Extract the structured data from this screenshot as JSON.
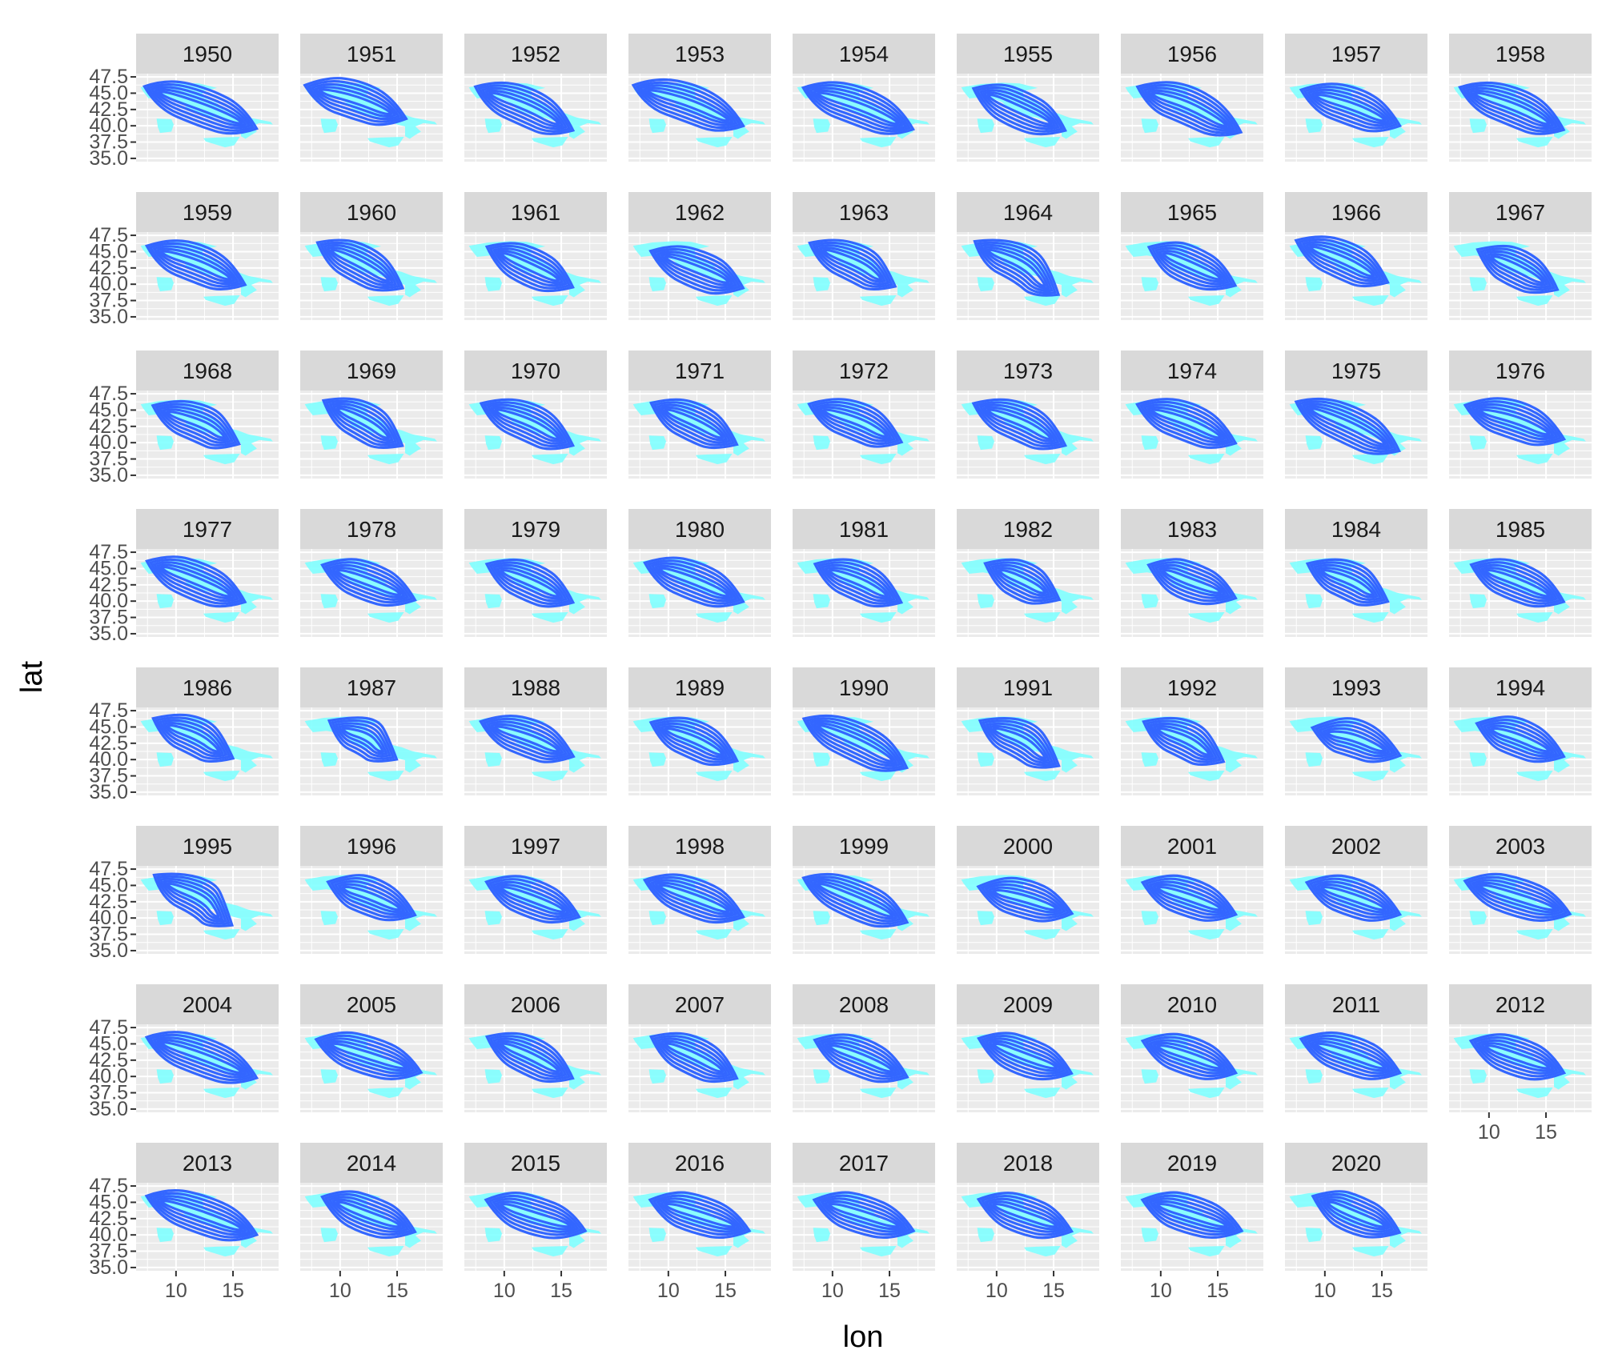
{
  "chart_data": {
    "type": "facet-density-contour",
    "xlabel": "lon",
    "ylabel": "lat",
    "x_ticks": [
      10,
      15
    ],
    "y_ticks": [
      "35.0",
      "37.5",
      "40.0",
      "42.5",
      "45.0",
      "47.5"
    ],
    "xlim": [
      6.5,
      19.0
    ],
    "ylim": [
      34.5,
      48.0
    ],
    "grid": true,
    "colors": {
      "contour": "#3366FF",
      "map_fill": "#80FFFF",
      "panel_background": "#EBEBEB",
      "strip_background": "#D9D9D9",
      "grid": "#FFFFFF"
    },
    "facets": [
      {
        "year": "1950",
        "density_centers": [
          [
            8.8,
            45.0
          ],
          [
            12.5,
            42.8
          ],
          [
            15.5,
            40.6
          ]
        ]
      },
      {
        "year": "1951",
        "density_centers": [
          [
            8.5,
            45.3
          ],
          [
            11.5,
            44.0
          ],
          [
            14.2,
            42.0
          ]
        ]
      },
      {
        "year": "1952",
        "density_centers": [
          [
            9.0,
            44.8
          ],
          [
            12.2,
            42.8
          ],
          [
            14.5,
            40.5
          ]
        ]
      },
      {
        "year": "1953",
        "density_centers": [
          [
            8.5,
            45.2
          ],
          [
            12.0,
            43.5
          ],
          [
            15.0,
            41.0
          ]
        ]
      },
      {
        "year": "1954",
        "density_centers": [
          [
            9.0,
            44.8
          ],
          [
            12.5,
            43.0
          ],
          [
            15.5,
            40.5
          ]
        ]
      },
      {
        "year": "1955",
        "density_centers": [
          [
            9.5,
            44.5
          ],
          [
            12.0,
            42.5
          ],
          [
            14.5,
            40.5
          ]
        ]
      },
      {
        "year": "1956",
        "density_centers": [
          [
            9.5,
            44.8
          ],
          [
            12.5,
            43.2
          ],
          [
            15.5,
            40.2
          ]
        ]
      },
      {
        "year": "1957",
        "density_centers": [
          [
            9.5,
            44.5
          ],
          [
            12.5,
            43.0
          ],
          [
            15.0,
            41.0
          ]
        ]
      },
      {
        "year": "1958",
        "density_centers": [
          [
            9.0,
            44.8
          ],
          [
            12.5,
            42.8
          ],
          [
            15.0,
            40.5
          ]
        ]
      },
      {
        "year": "1959",
        "density_centers": [
          [
            9.0,
            44.8
          ],
          [
            12.0,
            43.2
          ],
          [
            14.5,
            41.0
          ]
        ]
      },
      {
        "year": "1960",
        "density_centers": [
          [
            9.5,
            45.0
          ],
          [
            12.0,
            43.0
          ],
          [
            14.0,
            40.8
          ]
        ]
      },
      {
        "year": "1961",
        "density_centers": [
          [
            10.0,
            44.5
          ],
          [
            12.5,
            42.5
          ],
          [
            14.5,
            40.8
          ]
        ]
      },
      {
        "year": "1962",
        "density_centers": [
          [
            10.0,
            44.0
          ],
          [
            13.0,
            42.0
          ],
          [
            15.0,
            40.5
          ]
        ]
      },
      {
        "year": "1963",
        "density_centers": [
          [
            9.5,
            45.0
          ],
          [
            12.5,
            43.0
          ],
          [
            14.0,
            41.0
          ]
        ]
      },
      {
        "year": "1964",
        "density_centers": [
          [
            9.5,
            45.0
          ],
          [
            12.5,
            43.0
          ],
          [
            14.0,
            40.0
          ]
        ]
      },
      {
        "year": "1965",
        "density_centers": [
          [
            10.5,
            44.5
          ],
          [
            12.5,
            43.0
          ],
          [
            15.0,
            41.0
          ]
        ]
      },
      {
        "year": "1966",
        "density_centers": [
          [
            9.0,
            45.5
          ],
          [
            12.0,
            43.5
          ],
          [
            14.0,
            41.5
          ]
        ]
      },
      {
        "year": "1967",
        "density_centers": [
          [
            10.5,
            44.0
          ],
          [
            12.5,
            42.5
          ],
          [
            14.5,
            40.5
          ]
        ]
      },
      {
        "year": "1968",
        "density_centers": [
          [
            9.5,
            44.5
          ],
          [
            12.5,
            42.8
          ],
          [
            14.0,
            41.0
          ]
        ]
      },
      {
        "year": "1969",
        "density_centers": [
          [
            10.0,
            45.0
          ],
          [
            12.5,
            43.0
          ],
          [
            14.0,
            41.0
          ]
        ]
      },
      {
        "year": "1970",
        "density_centers": [
          [
            9.5,
            44.8
          ],
          [
            12.5,
            43.0
          ],
          [
            14.5,
            40.8
          ]
        ]
      },
      {
        "year": "1971",
        "density_centers": [
          [
            10.0,
            44.8
          ],
          [
            12.5,
            43.0
          ],
          [
            14.5,
            41.0
          ]
        ]
      },
      {
        "year": "1972",
        "density_centers": [
          [
            9.5,
            44.8
          ],
          [
            12.5,
            43.2
          ],
          [
            14.5,
            41.2
          ]
        ]
      },
      {
        "year": "1973",
        "density_centers": [
          [
            9.5,
            44.8
          ],
          [
            12.5,
            43.0
          ],
          [
            14.5,
            40.8
          ]
        ]
      },
      {
        "year": "1974",
        "density_centers": [
          [
            9.5,
            44.8
          ],
          [
            12.5,
            43.2
          ],
          [
            15.0,
            41.0
          ]
        ]
      },
      {
        "year": "1975",
        "density_centers": [
          [
            9.0,
            45.0
          ],
          [
            12.5,
            42.5
          ],
          [
            15.0,
            40.0
          ]
        ]
      },
      {
        "year": "1976",
        "density_centers": [
          [
            9.5,
            44.8
          ],
          [
            12.5,
            43.5
          ],
          [
            15.0,
            41.5
          ]
        ]
      },
      {
        "year": "1977",
        "density_centers": [
          [
            9.0,
            45.0
          ],
          [
            12.0,
            43.0
          ],
          [
            14.5,
            41.0
          ]
        ]
      },
      {
        "year": "1978",
        "density_centers": [
          [
            10.0,
            44.5
          ],
          [
            12.5,
            43.0
          ],
          [
            15.0,
            41.2
          ]
        ]
      },
      {
        "year": "1979",
        "density_centers": [
          [
            10.0,
            44.5
          ],
          [
            12.5,
            42.8
          ],
          [
            14.5,
            41.0
          ]
        ]
      },
      {
        "year": "1980",
        "density_centers": [
          [
            9.5,
            44.8
          ],
          [
            12.5,
            43.0
          ],
          [
            15.0,
            41.0
          ]
        ]
      },
      {
        "year": "1981",
        "density_centers": [
          [
            10.0,
            44.5
          ],
          [
            12.5,
            43.0
          ],
          [
            14.5,
            41.0
          ]
        ]
      },
      {
        "year": "1982",
        "density_centers": [
          [
            10.5,
            44.5
          ],
          [
            12.5,
            43.0
          ],
          [
            14.0,
            41.5
          ]
        ]
      },
      {
        "year": "1983",
        "density_centers": [
          [
            10.5,
            44.5
          ],
          [
            12.5,
            43.0
          ],
          [
            15.0,
            41.5
          ]
        ]
      },
      {
        "year": "1984",
        "density_centers": [
          [
            10.0,
            44.5
          ],
          [
            12.5,
            43.0
          ],
          [
            14.0,
            41.2
          ]
        ]
      },
      {
        "year": "1985",
        "density_centers": [
          [
            10.0,
            44.5
          ],
          [
            12.5,
            43.0
          ],
          [
            15.0,
            41.0
          ]
        ]
      },
      {
        "year": "1986",
        "density_centers": [
          [
            9.5,
            45.0
          ],
          [
            12.0,
            43.5
          ],
          [
            13.5,
            41.5
          ]
        ]
      },
      {
        "year": "1987",
        "density_centers": [
          [
            10.5,
            44.5
          ],
          [
            12.5,
            43.5
          ],
          [
            13.5,
            41.5
          ]
        ]
      },
      {
        "year": "1988",
        "density_centers": [
          [
            9.5,
            44.8
          ],
          [
            12.5,
            43.2
          ],
          [
            14.5,
            41.5
          ]
        ]
      },
      {
        "year": "1989",
        "density_centers": [
          [
            10.0,
            44.5
          ],
          [
            12.5,
            43.0
          ],
          [
            14.5,
            41.0
          ]
        ]
      },
      {
        "year": "1990",
        "density_centers": [
          [
            9.0,
            45.0
          ],
          [
            12.5,
            42.5
          ],
          [
            15.0,
            40.0
          ]
        ]
      },
      {
        "year": "1991",
        "density_centers": [
          [
            10.0,
            44.5
          ],
          [
            12.5,
            43.0
          ],
          [
            14.0,
            40.5
          ]
        ]
      },
      {
        "year": "1992",
        "density_centers": [
          [
            10.0,
            44.5
          ],
          [
            12.5,
            43.0
          ],
          [
            14.0,
            41.0
          ]
        ]
      },
      {
        "year": "1993",
        "density_centers": [
          [
            10.5,
            44.0
          ],
          [
            12.5,
            43.5
          ],
          [
            15.0,
            41.5
          ]
        ]
      },
      {
        "year": "1994",
        "density_centers": [
          [
            10.5,
            44.5
          ],
          [
            12.5,
            43.5
          ],
          [
            15.0,
            41.5
          ]
        ]
      },
      {
        "year": "1995",
        "density_centers": [
          [
            9.5,
            45.0
          ],
          [
            12.5,
            43.0
          ],
          [
            13.5,
            40.5
          ]
        ]
      },
      {
        "year": "1996",
        "density_centers": [
          [
            10.5,
            44.5
          ],
          [
            12.5,
            43.5
          ],
          [
            15.0,
            41.5
          ]
        ]
      },
      {
        "year": "1997",
        "density_centers": [
          [
            10.0,
            44.5
          ],
          [
            12.5,
            43.0
          ],
          [
            15.0,
            41.2
          ]
        ]
      },
      {
        "year": "1998",
        "density_centers": [
          [
            9.5,
            44.8
          ],
          [
            12.5,
            43.0
          ],
          [
            15.0,
            41.2
          ]
        ]
      },
      {
        "year": "1999",
        "density_centers": [
          [
            9.0,
            45.0
          ],
          [
            12.5,
            42.5
          ],
          [
            15.0,
            40.5
          ]
        ]
      },
      {
        "year": "2000",
        "density_centers": [
          [
            10.0,
            44.0
          ],
          [
            12.5,
            43.0
          ],
          [
            15.0,
            41.5
          ]
        ]
      },
      {
        "year": "2001",
        "density_centers": [
          [
            10.0,
            44.5
          ],
          [
            12.5,
            43.2
          ],
          [
            15.0,
            41.5
          ]
        ]
      },
      {
        "year": "2002",
        "density_centers": [
          [
            10.0,
            44.5
          ],
          [
            12.5,
            43.2
          ],
          [
            15.0,
            41.5
          ]
        ]
      },
      {
        "year": "2003",
        "density_centers": [
          [
            9.5,
            44.8
          ],
          [
            12.5,
            43.2
          ],
          [
            15.5,
            41.5
          ]
        ]
      },
      {
        "year": "2004",
        "density_centers": [
          [
            9.0,
            45.0
          ],
          [
            12.5,
            43.0
          ],
          [
            15.5,
            40.8
          ]
        ]
      },
      {
        "year": "2005",
        "density_centers": [
          [
            9.5,
            44.8
          ],
          [
            12.5,
            43.2
          ],
          [
            15.5,
            41.5
          ]
        ]
      },
      {
        "year": "2006",
        "density_centers": [
          [
            10.0,
            44.8
          ],
          [
            12.5,
            43.0
          ],
          [
            14.5,
            41.0
          ]
        ]
      },
      {
        "year": "2007",
        "density_centers": [
          [
            10.0,
            44.8
          ],
          [
            12.5,
            43.0
          ],
          [
            14.5,
            41.0
          ]
        ]
      },
      {
        "year": "2008",
        "density_centers": [
          [
            10.0,
            44.5
          ],
          [
            12.5,
            43.0
          ],
          [
            15.0,
            41.0
          ]
        ]
      },
      {
        "year": "2009",
        "density_centers": [
          [
            10.0,
            44.8
          ],
          [
            12.5,
            43.0
          ],
          [
            15.0,
            41.5
          ]
        ]
      },
      {
        "year": "2010",
        "density_centers": [
          [
            10.0,
            44.5
          ],
          [
            12.5,
            43.2
          ],
          [
            15.0,
            41.5
          ]
        ]
      },
      {
        "year": "2011",
        "density_centers": [
          [
            9.5,
            44.8
          ],
          [
            12.5,
            43.2
          ],
          [
            15.0,
            41.5
          ]
        ]
      },
      {
        "year": "2012",
        "density_centers": [
          [
            10.0,
            44.5
          ],
          [
            12.5,
            43.0
          ],
          [
            15.0,
            41.5
          ]
        ]
      },
      {
        "year": "2013",
        "density_centers": [
          [
            9.0,
            45.0
          ],
          [
            12.5,
            43.0
          ],
          [
            15.5,
            41.0
          ]
        ]
      },
      {
        "year": "2014",
        "density_centers": [
          [
            10.0,
            44.8
          ],
          [
            12.5,
            43.0
          ],
          [
            15.0,
            41.5
          ]
        ]
      },
      {
        "year": "2015",
        "density_centers": [
          [
            10.0,
            44.5
          ],
          [
            12.5,
            43.0
          ],
          [
            15.5,
            41.5
          ]
        ]
      },
      {
        "year": "2016",
        "density_centers": [
          [
            10.0,
            44.5
          ],
          [
            12.5,
            43.2
          ],
          [
            15.5,
            41.5
          ]
        ]
      },
      {
        "year": "2017",
        "density_centers": [
          [
            10.0,
            44.5
          ],
          [
            12.5,
            43.2
          ],
          [
            15.5,
            41.5
          ]
        ]
      },
      {
        "year": "2018",
        "density_centers": [
          [
            10.0,
            44.5
          ],
          [
            12.5,
            43.0
          ],
          [
            15.0,
            41.5
          ]
        ]
      },
      {
        "year": "2019",
        "density_centers": [
          [
            10.0,
            44.5
          ],
          [
            12.5,
            43.2
          ],
          [
            15.5,
            41.5
          ]
        ]
      },
      {
        "year": "2020",
        "density_centers": [
          [
            10.5,
            44.8
          ],
          [
            12.5,
            43.2
          ],
          [
            15.0,
            41.5
          ]
        ]
      }
    ]
  }
}
